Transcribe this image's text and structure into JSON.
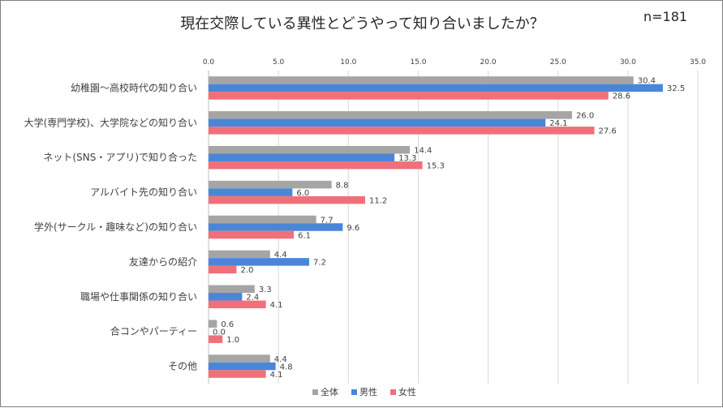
{
  "title": "現在交際している異性とどうやって知り合いましたか？",
  "sample_size": "n=181",
  "chart_data": {
    "type": "bar",
    "orientation": "horizontal",
    "title": "現在交際している異性とどうやって知り合いましたか？",
    "xlim": [
      0,
      35
    ],
    "tick_values": [
      0,
      5,
      10,
      15,
      20,
      25,
      30,
      35
    ],
    "tick_labels": [
      "0.0",
      "5.0",
      "10.0",
      "15.0",
      "20.0",
      "25.0",
      "30.0",
      "35.0"
    ],
    "categories": [
      "幼稚園～高校時代の知り合い",
      "大学(専門学校)、大学院などの知り合い",
      "ネット(SNS・アプリ)で知り合った",
      "アルバイト先の知り合い",
      "学外(サークル・趣味など)の知り合い",
      "友達からの紹介",
      "職場や仕事関係の知り合い",
      "合コンやパーティー",
      "その他"
    ],
    "series": [
      {
        "name": "全体",
        "color": "#a5a5a5",
        "values": [
          30.4,
          26.0,
          14.4,
          8.8,
          7.7,
          4.4,
          3.3,
          0.6,
          4.4
        ],
        "labels": [
          "30.4",
          "26.0",
          "14.4",
          "8.8",
          "7.7",
          "4.4",
          "3.3",
          "0.6",
          "4.4"
        ]
      },
      {
        "name": "男性",
        "color": "#4a86d8",
        "values": [
          32.5,
          24.1,
          13.3,
          6.0,
          9.6,
          7.2,
          2.4,
          0.0,
          4.8
        ],
        "labels": [
          "32.5",
          "24.1",
          "13.3",
          "6.0",
          "9.6",
          "7.2",
          "2.4",
          "0.0",
          "4.8"
        ]
      },
      {
        "name": "女性",
        "color": "#f0707a",
        "values": [
          28.6,
          27.6,
          15.3,
          11.2,
          6.1,
          2.0,
          4.1,
          1.0,
          4.1
        ],
        "labels": [
          "28.6",
          "27.6",
          "15.3",
          "11.2",
          "6.1",
          "2.0",
          "4.1",
          "1.0",
          "4.1"
        ]
      }
    ],
    "legend": {
      "position": "bottom-right",
      "entries": [
        "全体",
        "男性",
        "女性"
      ]
    },
    "grid": true
  }
}
